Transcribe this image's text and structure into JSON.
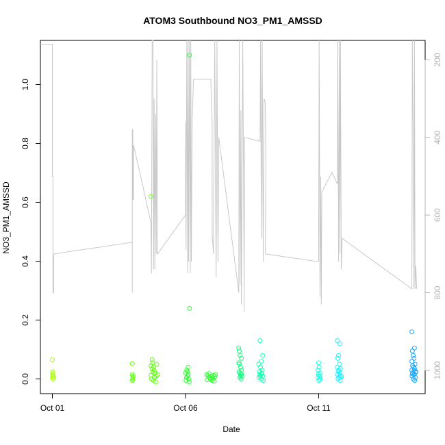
{
  "chart_data": {
    "type": "scatter",
    "title": "ATOM3 Southbound NO3_PM1_AMSSD",
    "xlabel": "Date",
    "ylabel": "NO3_PM1_AMSSD",
    "x_ticks": [
      {
        "label": "Oct 01",
        "day": 1
      },
      {
        "label": "Oct 06",
        "day": 6
      },
      {
        "label": "Oct 11",
        "day": 11
      }
    ],
    "xlim_days": [
      0.55,
      15.0
    ],
    "ylim": [
      -0.05,
      1.15
    ],
    "y_ticks": [
      "0.0",
      "0.2",
      "0.4",
      "0.6",
      "0.8",
      "1.0"
    ],
    "y2_axis": {
      "ylim": [
        1060,
        150
      ],
      "ticks": [
        "200",
        "400",
        "600",
        "800",
        "1000"
      ],
      "color": "#b4b4b4"
    },
    "series": [
      {
        "color": "#b0ff1a",
        "points": [
          {
            "day": 1.0,
            "y": 0.065
          },
          {
            "day": 1.0,
            "y": 0.02
          },
          {
            "day": 1.01,
            "y": 0.01
          },
          {
            "day": 1.01,
            "y": 0.005
          },
          {
            "day": 1.02,
            "y": 0.015
          },
          {
            "day": 1.03,
            "y": 0.0
          },
          {
            "day": 1.02,
            "y": 0.025
          },
          {
            "day": 1.04,
            "y": 0.008
          }
        ]
      },
      {
        "color": "#66ff1a",
        "points": [
          {
            "day": 4.0,
            "y": 0.052
          },
          {
            "day": 4.0,
            "y": 0.015
          },
          {
            "day": 4.02,
            "y": 0.005
          },
          {
            "day": 4.03,
            "y": 0.0
          },
          {
            "day": 4.04,
            "y": 0.01
          },
          {
            "day": 4.0,
            "y": -0.005
          },
          {
            "day": 4.7,
            "y": 0.62
          },
          {
            "day": 4.75,
            "y": 0.065
          },
          {
            "day": 4.76,
            "y": 0.055
          },
          {
            "day": 4.8,
            "y": 0.04
          },
          {
            "day": 4.82,
            "y": 0.03
          },
          {
            "day": 4.85,
            "y": 0.02
          },
          {
            "day": 4.7,
            "y": 0.045
          },
          {
            "day": 4.9,
            "y": 0.01
          },
          {
            "day": 4.72,
            "y": 0.0
          },
          {
            "day": 4.8,
            "y": -0.005
          },
          {
            "day": 4.95,
            "y": 0.015
          },
          {
            "day": 4.78,
            "y": 0.025
          },
          {
            "day": 4.88,
            "y": -0.01
          },
          {
            "day": 4.75,
            "y": 0.035
          },
          {
            "day": 4.83,
            "y": 0.005
          },
          {
            "day": 4.92,
            "y": 0.05
          },
          {
            "day": 4.7,
            "y": 0.012
          },
          {
            "day": 4.86,
            "y": 0.02
          }
        ]
      },
      {
        "color": "#2fff33",
        "points": [
          {
            "day": 6.15,
            "y": 1.1
          },
          {
            "day": 6.15,
            "y": 0.24
          },
          {
            "day": 6.1,
            "y": 0.04
          },
          {
            "day": 6.05,
            "y": 0.03
          },
          {
            "day": 6.0,
            "y": 0.02
          },
          {
            "day": 6.08,
            "y": 0.01
          },
          {
            "day": 6.12,
            "y": 0.0
          },
          {
            "day": 6.02,
            "y": -0.005
          },
          {
            "day": 6.1,
            "y": 0.015
          },
          {
            "day": 6.04,
            "y": 0.005
          },
          {
            "day": 6.14,
            "y": -0.01
          },
          {
            "day": 6.07,
            "y": 0.025
          },
          {
            "day": 6.8,
            "y": 0.015
          },
          {
            "day": 6.85,
            "y": 0.01
          },
          {
            "day": 6.9,
            "y": 0.005
          },
          {
            "day": 6.95,
            "y": 0.0
          },
          {
            "day": 7.0,
            "y": -0.005
          },
          {
            "day": 7.05,
            "y": 0.012
          },
          {
            "day": 7.1,
            "y": 0.008
          },
          {
            "day": 6.82,
            "y": -0.003
          },
          {
            "day": 6.92,
            "y": 0.002
          },
          {
            "day": 7.02,
            "y": 0.004
          },
          {
            "day": 7.08,
            "y": -0.008
          },
          {
            "day": 6.88,
            "y": 0.018
          },
          {
            "day": 7.12,
            "y": 0.015
          },
          {
            "day": 6.98,
            "y": 0.01
          }
        ]
      },
      {
        "color": "#1aff85",
        "points": [
          {
            "day": 8.0,
            "y": 0.105
          },
          {
            "day": 8.02,
            "y": 0.095
          },
          {
            "day": 8.05,
            "y": 0.08
          },
          {
            "day": 8.1,
            "y": 0.07
          },
          {
            "day": 8.0,
            "y": 0.055
          },
          {
            "day": 8.03,
            "y": 0.05
          },
          {
            "day": 8.07,
            "y": 0.04
          },
          {
            "day": 8.1,
            "y": 0.03
          },
          {
            "day": 8.01,
            "y": 0.025
          },
          {
            "day": 8.05,
            "y": 0.02
          },
          {
            "day": 8.08,
            "y": 0.015
          },
          {
            "day": 8.12,
            "y": 0.01
          },
          {
            "day": 8.04,
            "y": 0.005
          },
          {
            "day": 8.09,
            "y": 0.0
          },
          {
            "day": 8.06,
            "y": 0.01
          },
          {
            "day": 8.11,
            "y": 0.018
          }
        ]
      },
      {
        "color": "#1affb0",
        "points": [
          {
            "day": 8.8,
            "y": 0.13
          },
          {
            "day": 8.9,
            "y": 0.08
          },
          {
            "day": 8.85,
            "y": 0.06
          },
          {
            "day": 8.75,
            "y": 0.05
          },
          {
            "day": 8.82,
            "y": 0.04
          },
          {
            "day": 8.88,
            "y": 0.03
          },
          {
            "day": 8.78,
            "y": 0.025
          },
          {
            "day": 8.86,
            "y": 0.02
          },
          {
            "day": 8.8,
            "y": 0.015
          },
          {
            "day": 8.9,
            "y": 0.01
          },
          {
            "day": 8.76,
            "y": 0.005
          },
          {
            "day": 8.84,
            "y": 0.0
          },
          {
            "day": 8.92,
            "y": -0.005
          },
          {
            "day": 8.8,
            "y": 0.01
          },
          {
            "day": 8.87,
            "y": 0.018
          }
        ]
      },
      {
        "color": "#1affe0",
        "points": [
          {
            "day": 11.0,
            "y": 0.055
          },
          {
            "day": 11.02,
            "y": 0.04
          },
          {
            "day": 10.98,
            "y": 0.03
          },
          {
            "day": 11.05,
            "y": 0.02
          },
          {
            "day": 11.0,
            "y": 0.015
          },
          {
            "day": 11.03,
            "y": 0.01
          },
          {
            "day": 10.97,
            "y": 0.005
          },
          {
            "day": 11.06,
            "y": 0.0
          },
          {
            "day": 11.01,
            "y": -0.005
          },
          {
            "day": 11.04,
            "y": 0.008
          }
        ]
      },
      {
        "color": "#1af5ff",
        "points": [
          {
            "day": 11.7,
            "y": 0.13
          },
          {
            "day": 11.8,
            "y": 0.12
          },
          {
            "day": 11.75,
            "y": 0.08
          },
          {
            "day": 11.72,
            "y": 0.07
          },
          {
            "day": 11.78,
            "y": 0.05
          },
          {
            "day": 11.7,
            "y": 0.04
          },
          {
            "day": 11.82,
            "y": 0.035
          },
          {
            "day": 11.76,
            "y": 0.03
          },
          {
            "day": 11.74,
            "y": 0.025
          },
          {
            "day": 11.8,
            "y": 0.02
          },
          {
            "day": 11.71,
            "y": 0.015
          },
          {
            "day": 11.84,
            "y": 0.01
          },
          {
            "day": 11.77,
            "y": 0.005
          },
          {
            "day": 11.73,
            "y": 0.0
          },
          {
            "day": 11.81,
            "y": -0.005
          },
          {
            "day": 11.79,
            "y": 0.012
          },
          {
            "day": 11.85,
            "y": 0.008
          }
        ]
      },
      {
        "color": "#1aa8ff",
        "points": [
          {
            "day": 14.5,
            "y": 0.16
          },
          {
            "day": 14.6,
            "y": 0.105
          },
          {
            "day": 14.52,
            "y": 0.095
          },
          {
            "day": 14.55,
            "y": 0.08
          },
          {
            "day": 14.58,
            "y": 0.07
          },
          {
            "day": 14.5,
            "y": 0.06
          },
          {
            "day": 14.62,
            "y": 0.05
          },
          {
            "day": 14.53,
            "y": 0.045
          },
          {
            "day": 14.57,
            "y": 0.04
          },
          {
            "day": 14.6,
            "y": 0.035
          },
          {
            "day": 14.5,
            "y": 0.03
          },
          {
            "day": 14.65,
            "y": 0.025
          },
          {
            "day": 14.54,
            "y": 0.02
          },
          {
            "day": 14.59,
            "y": 0.015
          },
          {
            "day": 14.51,
            "y": 0.01
          },
          {
            "day": 14.63,
            "y": 0.005
          },
          {
            "day": 14.56,
            "y": 0.0
          },
          {
            "day": 14.61,
            "y": -0.005
          },
          {
            "day": 14.52,
            "y": 0.018
          },
          {
            "day": 14.58,
            "y": 0.028
          },
          {
            "day": 14.64,
            "y": 0.022
          }
        ]
      }
    ],
    "pressure_trace": {
      "color": "#c8c8c8",
      "points": [
        [
          0.55,
          160
        ],
        [
          1.0,
          160
        ],
        [
          1.0,
          500
        ],
        [
          1.02,
          500
        ],
        [
          1.02,
          800
        ],
        [
          1.05,
          800
        ],
        [
          1.05,
          700
        ],
        [
          4.0,
          670
        ],
        [
          4.0,
          800
        ],
        [
          4.0,
          380
        ],
        [
          4.02,
          380
        ],
        [
          4.02,
          560
        ],
        [
          4.05,
          560
        ],
        [
          4.05,
          420
        ],
        [
          4.35,
          510
        ],
        [
          4.7,
          620
        ],
        [
          4.72,
          750
        ],
        [
          4.75,
          150
        ],
        [
          4.78,
          150
        ],
        [
          4.8,
          740
        ],
        [
          4.82,
          300
        ],
        [
          4.85,
          740
        ],
        [
          4.88,
          340
        ],
        [
          4.9,
          700
        ],
        [
          4.92,
          200
        ],
        [
          4.95,
          700
        ],
        [
          6.0,
          600
        ],
        [
          6.0,
          360
        ],
        [
          6.02,
          690
        ],
        [
          6.05,
          150
        ],
        [
          6.08,
          750
        ],
        [
          6.1,
          150
        ],
        [
          6.12,
          720
        ],
        [
          6.15,
          150
        ],
        [
          6.18,
          750
        ],
        [
          6.2,
          150
        ],
        [
          6.22,
          720
        ],
        [
          6.25,
          360
        ],
        [
          6.3,
          250
        ],
        [
          6.95,
          250
        ],
        [
          7.0,
          360
        ],
        [
          7.0,
          650
        ],
        [
          7.05,
          700
        ],
        [
          7.1,
          150
        ],
        [
          7.15,
          760
        ],
        [
          7.18,
          150
        ],
        [
          7.22,
          720
        ],
        [
          7.25,
          400
        ],
        [
          8.0,
          800
        ],
        [
          8.02,
          150
        ],
        [
          8.05,
          780
        ],
        [
          8.08,
          330
        ],
        [
          8.1,
          830
        ],
        [
          8.15,
          150
        ],
        [
          8.2,
          750
        ],
        [
          8.2,
          850
        ],
        [
          8.22,
          400
        ],
        [
          8.8,
          410
        ],
        [
          8.82,
          150
        ],
        [
          8.85,
          660
        ],
        [
          8.88,
          150
        ],
        [
          8.92,
          720
        ],
        [
          8.95,
          300
        ],
        [
          9.0,
          310
        ],
        [
          9.02,
          480
        ],
        [
          9.0,
          700
        ],
        [
          11.0,
          720
        ],
        [
          11.02,
          150
        ],
        [
          11.05,
          810
        ],
        [
          11.08,
          500
        ],
        [
          11.1,
          830
        ],
        [
          11.12,
          540
        ],
        [
          11.5,
          490
        ],
        [
          11.7,
          520
        ],
        [
          11.72,
          150
        ],
        [
          11.75,
          720
        ],
        [
          11.78,
          150
        ],
        [
          11.8,
          700
        ],
        [
          11.82,
          150
        ],
        [
          11.85,
          740
        ],
        [
          11.88,
          660
        ],
        [
          14.5,
          790
        ],
        [
          14.52,
          150
        ],
        [
          14.55,
          400
        ],
        [
          14.58,
          790
        ],
        [
          14.6,
          150
        ],
        [
          14.62,
          790
        ],
        [
          14.65,
          730
        ],
        [
          14.68,
          790
        ]
      ]
    },
    "grid": false
  }
}
